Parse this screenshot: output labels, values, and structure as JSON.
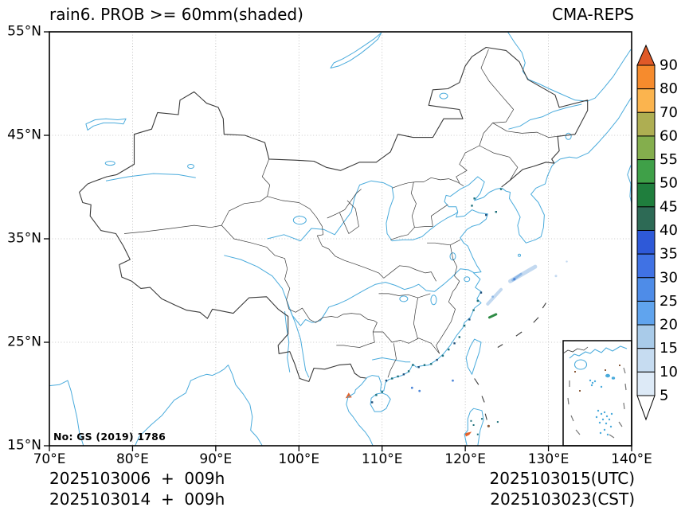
{
  "title": "rain6. PROB >= 60mm(shaded)",
  "source_label": "CMA-REPS",
  "license_label": "No: GS (2019) 1786",
  "footer": {
    "left_line1": "2025103006  +  009h",
    "left_line2": "2025103014  +  009h",
    "right_line1": "2025103015(UTC)",
    "right_line2": "2025103023(CST)"
  },
  "axes": {
    "x_ticks": [
      {
        "value": 70,
        "label": "70°E"
      },
      {
        "value": 80,
        "label": "80°E"
      },
      {
        "value": 90,
        "label": "90°E"
      },
      {
        "value": 100,
        "label": "100°E"
      },
      {
        "value": 110,
        "label": "110°E"
      },
      {
        "value": 120,
        "label": "120°E"
      },
      {
        "value": 130,
        "label": "130°E"
      },
      {
        "value": 140,
        "label": "140°E"
      }
    ],
    "y_ticks": [
      {
        "value": 15,
        "label": "15°N"
      },
      {
        "value": 25,
        "label": "25°N"
      },
      {
        "value": 35,
        "label": "35°N"
      },
      {
        "value": 45,
        "label": "45°N"
      },
      {
        "value": 55,
        "label": "55°N"
      }
    ],
    "grid_lons": [
      80,
      90,
      100,
      110,
      120,
      130
    ],
    "grid_lats": [
      25,
      35,
      45
    ]
  },
  "colorbar": {
    "levels": [
      5,
      10,
      15,
      20,
      25,
      30,
      35,
      40,
      45,
      50,
      55,
      60,
      70,
      80,
      90
    ],
    "segment_colors_ascending": [
      "#ddeaf7",
      "#c6dcf1",
      "#a9cbe9",
      "#60a4ee",
      "#4e8ce8",
      "#4072e4",
      "#2e59d8",
      "#2d6a55",
      "#1f7e3d",
      "#3fa048",
      "#84ae4d",
      "#aeae52",
      "#fbb44e",
      "#f68b2d"
    ],
    "over_color": "#e05a28",
    "under_color": "#ffffff"
  },
  "palette": {
    "coast_blue": "#4aabdc",
    "border_black": "#3a3a3a",
    "grid_gray": "#b5b5b5",
    "speck_teal": "#1d6f7a",
    "speck_navy": "#1f4e79",
    "patch_light": "#c3d9f0",
    "patch_mid": "#8fb8e6",
    "patch_core": "#4d86d8",
    "patch_green": "#2f8b45",
    "patch_orange": "#e2632c",
    "speck_brown": "#8a5a3a"
  },
  "chart_data": {
    "type": "heatmap",
    "title": "rain6. PROB >= 60mm(shaded)",
    "model": "CMA-REPS",
    "map_extent": {
      "lon_range": [
        70,
        140
      ],
      "lat_range": [
        15,
        55
      ]
    },
    "colorbar_levels": [
      5,
      10,
      15,
      20,
      25,
      30,
      35,
      40,
      45,
      50,
      55,
      60,
      70,
      80,
      90
    ],
    "colorbar_units": "%",
    "shaded_features": [
      {
        "desc": "light blue streak (5-20%) over East China Sea",
        "lon": 126.9,
        "lat": 31.7
      },
      {
        "desc": "light blue streak (5-20%) east of Zhejiang coast",
        "lon": 123.5,
        "lat": 29.4
      },
      {
        "desc": "small green streak (45-55%)",
        "lon": 123.2,
        "lat": 27.5
      },
      {
        "desc": "orange spot (>80%) near north Vietnam coast",
        "lon": 105.9,
        "lat": 19.8
      },
      {
        "desc": "orange spot (>80%) near Luzon, bottom edge",
        "lon": 120.3,
        "lat": 16.4
      },
      {
        "desc": "dark teal specks (25-45%) along South China coastline",
        "lon": 115.0,
        "lat": 22.8
      }
    ],
    "legend_position": "right",
    "grid": true
  }
}
